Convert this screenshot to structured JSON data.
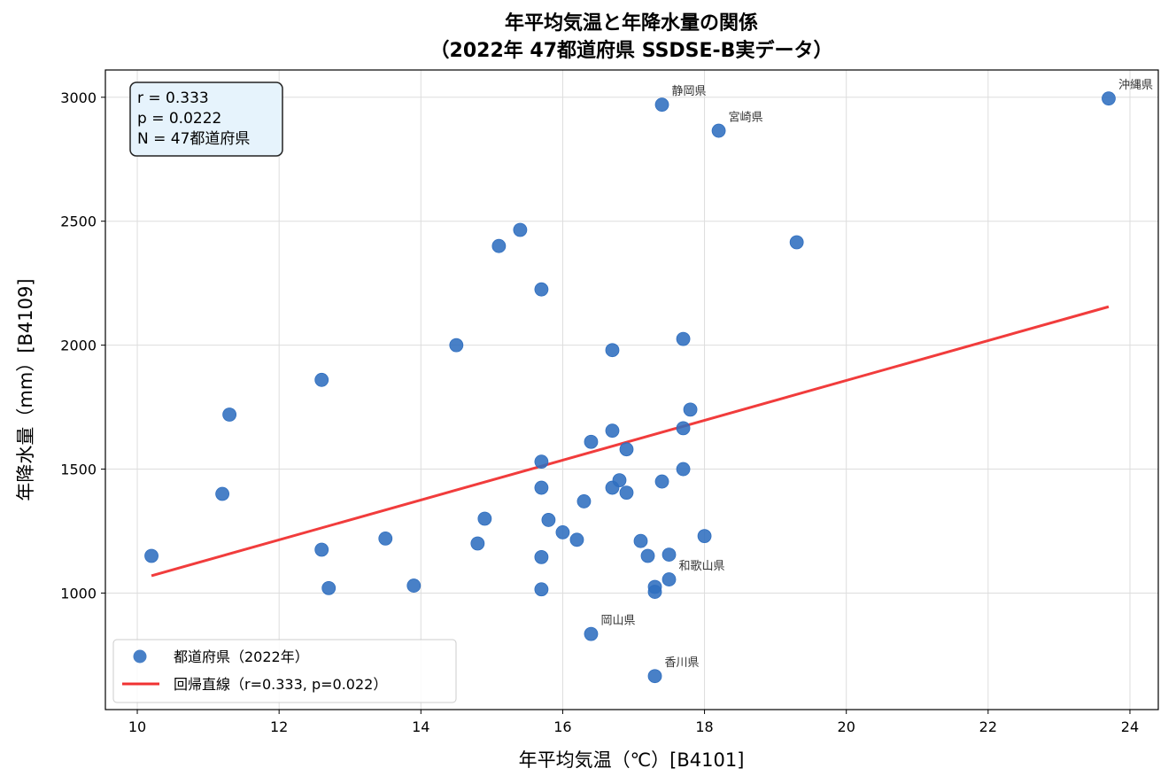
{
  "chart_data": {
    "type": "scatter",
    "title": "年平均気温と年降水量の関係",
    "subtitle": "（2022年 47都道府県 SSDSE-B実データ）",
    "xlabel": "年平均気温（℃）[B4101]",
    "ylabel": "年降水量（mm）[B4109]",
    "xlim": [
      9.55,
      24.4
    ],
    "ylim": [
      530,
      3110
    ],
    "xticks": [
      10,
      12,
      14,
      16,
      18,
      20,
      22,
      24
    ],
    "yticks": [
      1000,
      1500,
      2000,
      2500,
      3000
    ],
    "grid": true,
    "legend_position": "lower-left",
    "colors": {
      "points": "#2f6ebf",
      "regression": "#f03232",
      "stats_box_fill": "#e6f3fc",
      "stats_box_border": "#222222"
    },
    "stats": {
      "lines": [
        "r = 0.333",
        "p = 0.0222",
        "N = 47都道府県"
      ]
    },
    "series": [
      {
        "name": "都道府県（2022年）",
        "points": [
          {
            "x": 10.2,
            "y": 1150
          },
          {
            "x": 11.2,
            "y": 1400
          },
          {
            "x": 11.3,
            "y": 1720
          },
          {
            "x": 12.6,
            "y": 1860
          },
          {
            "x": 12.6,
            "y": 1175
          },
          {
            "x": 12.7,
            "y": 1020
          },
          {
            "x": 13.5,
            "y": 1220
          },
          {
            "x": 13.9,
            "y": 1030
          },
          {
            "x": 14.5,
            "y": 2000
          },
          {
            "x": 14.8,
            "y": 1200
          },
          {
            "x": 14.9,
            "y": 1300
          },
          {
            "x": 15.1,
            "y": 2400
          },
          {
            "x": 15.4,
            "y": 2465
          },
          {
            "x": 15.7,
            "y": 2225
          },
          {
            "x": 15.7,
            "y": 1530
          },
          {
            "x": 15.7,
            "y": 1425
          },
          {
            "x": 15.7,
            "y": 1145
          },
          {
            "x": 15.7,
            "y": 1015
          },
          {
            "x": 15.8,
            "y": 1295
          },
          {
            "x": 16.0,
            "y": 1245
          },
          {
            "x": 16.2,
            "y": 1215
          },
          {
            "x": 16.3,
            "y": 1370
          },
          {
            "x": 16.4,
            "y": 1610
          },
          {
            "x": 16.4,
            "y": 835,
            "label": "岡山県"
          },
          {
            "x": 16.7,
            "y": 1980
          },
          {
            "x": 16.7,
            "y": 1655
          },
          {
            "x": 16.7,
            "y": 1425
          },
          {
            "x": 16.8,
            "y": 1455
          },
          {
            "x": 16.9,
            "y": 1580
          },
          {
            "x": 16.9,
            "y": 1405
          },
          {
            "x": 17.1,
            "y": 1210
          },
          {
            "x": 17.2,
            "y": 1150
          },
          {
            "x": 17.3,
            "y": 1025
          },
          {
            "x": 17.3,
            "y": 1005
          },
          {
            "x": 17.3,
            "y": 665,
            "label": "香川県"
          },
          {
            "x": 17.4,
            "y": 2970,
            "label": "静岡県"
          },
          {
            "x": 17.4,
            "y": 1450
          },
          {
            "x": 17.5,
            "y": 1155
          },
          {
            "x": 17.5,
            "y": 1055,
            "label": "和歌山県"
          },
          {
            "x": 17.7,
            "y": 2025
          },
          {
            "x": 17.7,
            "y": 1665
          },
          {
            "x": 17.7,
            "y": 1500
          },
          {
            "x": 17.8,
            "y": 1740
          },
          {
            "x": 18.0,
            "y": 1230
          },
          {
            "x": 18.2,
            "y": 2865,
            "label": "宮崎県"
          },
          {
            "x": 19.3,
            "y": 2415
          },
          {
            "x": 23.7,
            "y": 2995,
            "label": "沖縄県"
          }
        ]
      },
      {
        "name": "回帰直線（r=0.333, p=0.022）",
        "line": {
          "x": [
            10.2,
            23.7
          ],
          "y": [
            1070,
            2155
          ]
        }
      }
    ]
  }
}
